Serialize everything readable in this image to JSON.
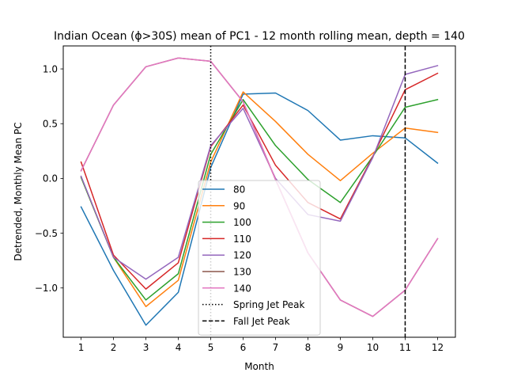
{
  "chart_data": {
    "type": "line",
    "title": "Indian Ocean (ϕ>30S) mean of PC1 - 12 month rolling mean, depth = 140",
    "xlabel": "Month",
    "ylabel": "Detrended, Monthly Mean PC",
    "x": [
      1,
      2,
      3,
      4,
      5,
      6,
      7,
      8,
      9,
      10,
      11,
      12
    ],
    "xticks": [
      "1",
      "2",
      "3",
      "4",
      "5",
      "6",
      "7",
      "8",
      "9",
      "10",
      "11",
      "12"
    ],
    "yticks": [
      -1.0,
      -0.5,
      0.0,
      0.5,
      1.0
    ],
    "ytick_labels": [
      "−1.0",
      "−0.5",
      "0.0",
      "0.5",
      "1.0"
    ],
    "xlim": [
      0.45,
      12.55
    ],
    "ylim": [
      -1.45,
      1.21
    ],
    "grid": false,
    "legend_position": "lower-center",
    "series": [
      {
        "name": "80",
        "color": "#1f77b4",
        "values": [
          -0.26,
          -0.84,
          -1.34,
          -1.04,
          0.1,
          0.77,
          0.78,
          0.62,
          0.35,
          0.39,
          0.37,
          0.14
        ]
      },
      {
        "name": "90",
        "color": "#ff7f0e",
        "values": [
          0.01,
          -0.72,
          -1.17,
          -0.93,
          0.15,
          0.79,
          0.52,
          0.22,
          -0.02,
          0.23,
          0.46,
          0.42
        ]
      },
      {
        "name": "100",
        "color": "#2ca02c",
        "values": [
          0.01,
          -0.72,
          -1.11,
          -0.87,
          0.22,
          0.72,
          0.3,
          -0.01,
          -0.22,
          0.2,
          0.65,
          0.72
        ]
      },
      {
        "name": "110",
        "color": "#d62728",
        "values": [
          0.15,
          -0.7,
          -1.01,
          -0.77,
          0.29,
          0.67,
          0.12,
          -0.22,
          -0.37,
          0.2,
          0.81,
          0.96
        ]
      },
      {
        "name": "120",
        "color": "#9467bd",
        "values": [
          0.02,
          -0.72,
          -0.92,
          -0.72,
          0.3,
          0.64,
          0.0,
          -0.33,
          -0.39,
          0.19,
          0.95,
          1.03
        ]
      },
      {
        "name": "130",
        "color": "#8c564b",
        "values": [
          0.07,
          0.67,
          1.02,
          1.1,
          1.07,
          0.7,
          -0.01,
          -0.68,
          -1.11,
          -1.26,
          -1.02,
          -0.55
        ]
      },
      {
        "name": "140",
        "color": "#e377c2",
        "values": [
          0.07,
          0.67,
          1.02,
          1.1,
          1.07,
          0.7,
          -0.01,
          -0.68,
          -1.11,
          -1.26,
          -1.02,
          -0.55
        ]
      }
    ],
    "vlines": [
      {
        "name": "Spring Jet Peak",
        "x": 5,
        "style": "dotted",
        "color": "#000000"
      },
      {
        "name": "Fall Jet Peak",
        "x": 11,
        "style": "dashed",
        "color": "#000000"
      }
    ]
  }
}
